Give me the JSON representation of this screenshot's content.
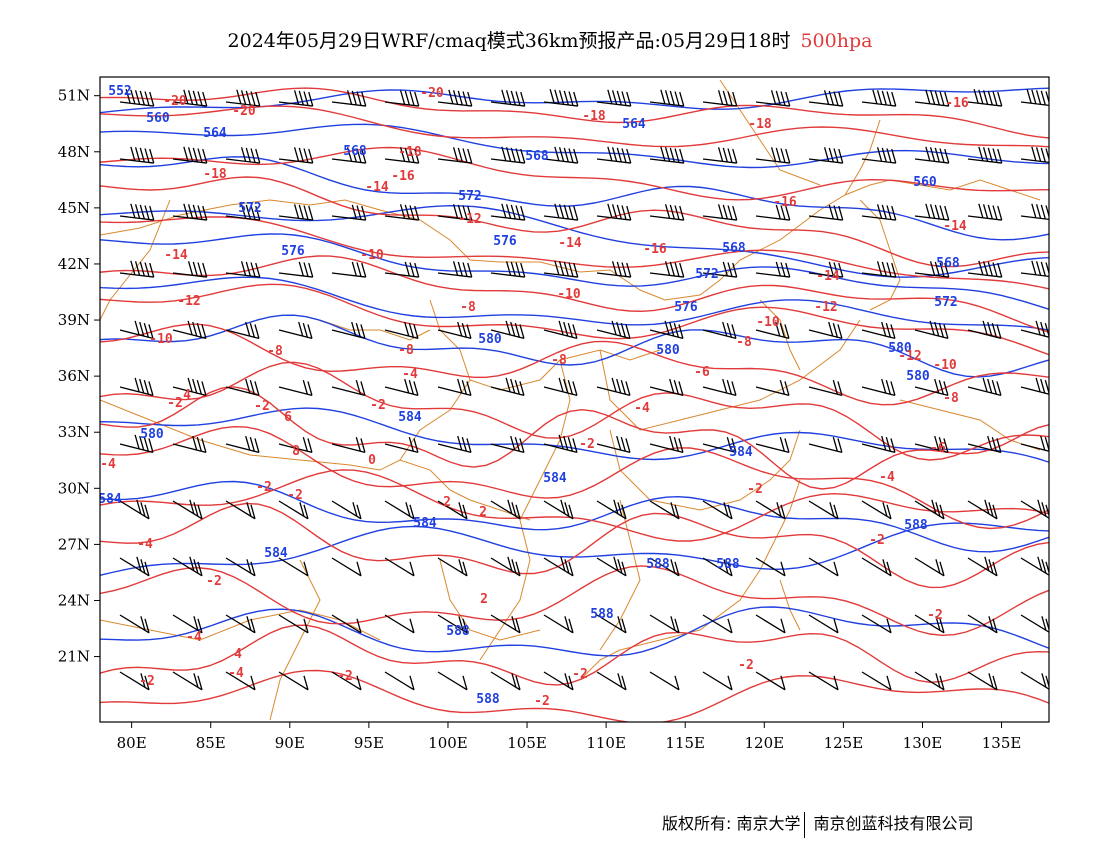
{
  "title": {
    "main": "2024年05月29日WRF/cmaq模式36km预报产品:05月29日18时",
    "level": "500hpa",
    "level_color": "#e23a3a"
  },
  "map": {
    "lon_range": [
      78,
      138
    ],
    "lat_range": [
      17.5,
      52
    ],
    "lon_ticks": [
      "80E",
      "85E",
      "90E",
      "95E",
      "100E",
      "105E",
      "110E",
      "115E",
      "120E",
      "125E",
      "130E",
      "135E"
    ],
    "lat_ticks": [
      "51N",
      "48N",
      "45N",
      "42N",
      "39N",
      "36N",
      "33N",
      "30N",
      "27N",
      "24N",
      "21N"
    ],
    "colors": {
      "height_contour": "#2040e0",
      "temperature_contour": "#e23a3a",
      "boundary": "#d9882f",
      "wind_barb": "#000000"
    },
    "height_labels": [
      "552",
      "560",
      "564",
      "568",
      "572",
      "576",
      "580",
      "584",
      "588"
    ],
    "temperature_labels": [
      "-20",
      "-18",
      "-16",
      "-14",
      "-12",
      "-10",
      "-8",
      "-6",
      "-4",
      "-2",
      "0",
      "2",
      "4",
      "6",
      "8"
    ]
  },
  "footer": {
    "copyright": "版权所有: 南京大学",
    "company": "南京创蓝科技有限公司"
  }
}
